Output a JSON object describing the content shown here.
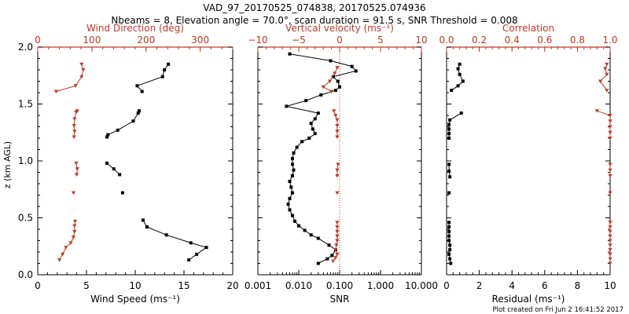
{
  "header": {
    "title": "VAD_97_20170525_074838, 20170525.074936",
    "subtitle": "Nbeams = 8, Elevation angle = 70.0°, scan duration = 91.5 s, SNR Threshold = 0.008"
  },
  "footer": {
    "created": "Plot created on Fri Jun  2 16:41:52 2017"
  },
  "colors": {
    "black": "#000000",
    "red": "#c0392b"
  },
  "chart_data": [
    {
      "type": "scatter",
      "title": "",
      "ylabel": "z (km AGL)",
      "ylim": [
        0,
        2
      ],
      "yticks": [
        0,
        0.5,
        1,
        1.5,
        2
      ],
      "ytick_labels": [
        "0.0",
        "0.5",
        "1.0",
        "1.5",
        "2.0"
      ],
      "bottom_axis": {
        "label": "Wind Speed (ms⁻¹)",
        "range": [
          0,
          20
        ],
        "ticks": [
          0,
          5,
          10,
          15,
          20
        ],
        "tick_labels": [
          "0",
          "5",
          "10",
          "15",
          "20"
        ],
        "scale": "linear"
      },
      "top_axis": {
        "label": "Wind Direction (deg)",
        "range": [
          0,
          360
        ],
        "ticks": [
          0,
          100,
          200,
          300
        ],
        "tick_labels": [
          "0",
          "100",
          "200",
          "300"
        ],
        "scale": "linear"
      },
      "series": [
        {
          "name": "Wind Speed",
          "axis": "bottom",
          "color": "#000000",
          "marker": "square",
          "segments": [
            [
              [
                15.5,
                0.13
              ],
              [
                16.3,
                0.18
              ],
              [
                17.3,
                0.24
              ],
              [
                15.7,
                0.28
              ],
              [
                13.2,
                0.35
              ],
              [
                11.2,
                0.42
              ],
              [
                10.8,
                0.48
              ]
            ],
            [
              [
                8.7,
                0.72
              ]
            ],
            [
              [
                8.4,
                0.88
              ],
              [
                7.8,
                0.93
              ],
              [
                7.1,
                0.98
              ]
            ],
            [
              [
                7.1,
                1.21
              ],
              [
                7.2,
                1.23
              ],
              [
                8.2,
                1.27
              ],
              [
                9.8,
                1.35
              ],
              [
                10.3,
                1.42
              ],
              [
                10.4,
                1.44
              ]
            ],
            [
              [
                10.7,
                1.61
              ],
              [
                10.2,
                1.66
              ],
              [
                12.8,
                1.74
              ],
              [
                13.0,
                1.8
              ],
              [
                13.4,
                1.85
              ]
            ]
          ]
        },
        {
          "name": "Wind Direction",
          "axis": "top",
          "color": "#c0392b",
          "marker": "triangle",
          "segments": [
            [
              [
                40,
                0.13
              ],
              [
                46,
                0.18
              ],
              [
                52,
                0.24
              ],
              [
                61,
                0.28
              ],
              [
                66,
                0.33
              ],
              [
                68,
                0.38
              ],
              [
                68,
                0.43
              ],
              [
                69,
                0.47
              ]
            ],
            [
              [
                66,
                0.72
              ]
            ],
            [
              [
                72,
                0.88
              ],
              [
                73,
                0.93
              ],
              [
                71,
                0.98
              ]
            ],
            [
              [
                67,
                1.21
              ],
              [
                68,
                1.26
              ],
              [
                67,
                1.31
              ],
              [
                68,
                1.37
              ],
              [
                71,
                1.43
              ],
              [
                73,
                1.44
              ]
            ],
            [
              [
                34,
                1.61
              ],
              [
                70,
                1.66
              ],
              [
                81,
                1.74
              ],
              [
                84,
                1.8
              ],
              [
                81,
                1.85
              ]
            ]
          ]
        }
      ]
    },
    {
      "type": "scatter",
      "title": "",
      "ylim": [
        0,
        2
      ],
      "bottom_axis": {
        "label": "SNR",
        "range": [
          0.001,
          10
        ],
        "ticks": [
          0.001,
          0.01,
          0.1,
          1,
          10
        ],
        "tick_labels": [
          "0.001",
          "0.010",
          "0.100",
          "1.000",
          "10.000"
        ],
        "scale": "log"
      },
      "top_axis": {
        "label": "Vertical velocity (ms⁻¹)",
        "range": [
          -10,
          10
        ],
        "ticks": [
          -10,
          -5,
          0,
          5,
          10
        ],
        "tick_labels": [
          "−10",
          "−5",
          "0",
          "5",
          "10"
        ],
        "scale": "linear"
      },
      "reference_line": {
        "axis": "top",
        "value": 0,
        "style": "dotted",
        "color": "#c0392b"
      },
      "series": [
        {
          "name": "SNR",
          "axis": "bottom",
          "color": "#000000",
          "marker": "square",
          "points": [
            [
              0.03,
              0.1
            ],
            [
              0.05,
              0.14
            ],
            [
              0.065,
              0.17
            ],
            [
              0.08,
              0.22
            ],
            [
              0.055,
              0.26
            ],
            [
              0.03,
              0.32
            ],
            [
              0.02,
              0.35
            ],
            [
              0.014,
              0.39
            ],
            [
              0.01,
              0.43
            ],
            [
              0.008,
              0.47
            ],
            [
              0.007,
              0.52
            ],
            [
              0.006,
              0.57
            ],
            [
              0.0055,
              0.62
            ],
            [
              0.006,
              0.67
            ],
            [
              0.007,
              0.72
            ],
            [
              0.0065,
              0.77
            ],
            [
              0.006,
              0.82
            ],
            [
              0.007,
              0.87
            ],
            [
              0.0075,
              0.92
            ],
            [
              0.007,
              0.97
            ],
            [
              0.007,
              1.02
            ],
            [
              0.0075,
              1.07
            ],
            [
              0.009,
              1.12
            ],
            [
              0.012,
              1.17
            ],
            [
              0.018,
              1.2
            ],
            [
              0.025,
              1.24
            ],
            [
              0.022,
              1.28
            ],
            [
              0.02,
              1.33
            ],
            [
              0.025,
              1.37
            ],
            [
              0.03,
              1.42
            ],
            [
              0.005,
              1.48
            ],
            [
              0.015,
              1.53
            ],
            [
              0.035,
              1.58
            ],
            [
              0.08,
              1.62
            ],
            [
              0.1,
              1.65
            ],
            [
              0.09,
              1.7
            ],
            [
              0.07,
              1.74
            ],
            [
              0.25,
              1.79
            ],
            [
              0.2,
              1.83
            ],
            [
              0.06,
              1.88
            ],
            [
              0.006,
              1.94
            ]
          ]
        },
        {
          "name": "Vertical velocity",
          "axis": "top",
          "color": "#c0392b",
          "marker": "triangle",
          "segments": [
            [
              [
                -0.8,
                0.12
              ],
              [
                -0.5,
                0.15
              ],
              [
                -0.3,
                0.18
              ],
              [
                -0.5,
                0.22
              ],
              [
                -0.4,
                0.26
              ],
              [
                -0.3,
                0.3
              ],
              [
                -0.3,
                0.34
              ],
              [
                -0.3,
                0.38
              ],
              [
                -0.3,
                0.42
              ],
              [
                -0.3,
                0.46
              ]
            ],
            [
              [
                -0.3,
                0.72
              ]
            ],
            [
              [
                -0.3,
                0.87
              ],
              [
                -0.3,
                0.92
              ],
              [
                -0.2,
                0.97
              ]
            ],
            [
              [
                -0.3,
                1.21
              ],
              [
                -0.3,
                1.26
              ],
              [
                -0.3,
                1.31
              ],
              [
                -0.3,
                1.36
              ],
              [
                -0.5,
                1.4
              ],
              [
                -0.7,
                1.44
              ]
            ],
            [
              [
                -1.0,
                1.61
              ],
              [
                -2.0,
                1.65
              ],
              [
                -1.2,
                1.7
              ],
              [
                -0.6,
                1.77
              ],
              [
                -0.3,
                1.82
              ]
            ]
          ]
        }
      ]
    },
    {
      "type": "scatter",
      "title": "",
      "ylim": [
        0,
        2
      ],
      "bottom_axis": {
        "label": "Residual (ms⁻¹)",
        "range": [
          0,
          10
        ],
        "ticks": [
          0,
          2,
          4,
          6,
          8,
          10
        ],
        "tick_labels": [
          "0",
          "2",
          "4",
          "6",
          "8",
          "10"
        ],
        "scale": "linear"
      },
      "top_axis": {
        "label": "Correlation",
        "range": [
          0,
          1
        ],
        "ticks": [
          0,
          0.2,
          0.4,
          0.6,
          0.8,
          1
        ],
        "tick_labels": [
          "0.0",
          "0.2",
          "0.4",
          "0.6",
          "0.8",
          "1.0"
        ],
        "scale": "linear"
      },
      "series": [
        {
          "name": "Residual",
          "axis": "bottom",
          "color": "#000000",
          "marker": "square",
          "segments": [
            [
              [
                0.25,
                0.1
              ],
              [
                0.2,
                0.14
              ],
              [
                0.15,
                0.18
              ],
              [
                0.2,
                0.22
              ],
              [
                0.2,
                0.26
              ],
              [
                0.15,
                0.3
              ],
              [
                0.15,
                0.34
              ],
              [
                0.15,
                0.38
              ],
              [
                0.15,
                0.42
              ],
              [
                0.15,
                0.46
              ]
            ],
            [
              [
                0.15,
                0.72
              ]
            ],
            [
              [
                0.2,
                0.86
              ],
              [
                0.15,
                0.91
              ],
              [
                0.15,
                0.97
              ]
            ],
            [
              [
                0.15,
                1.2
              ],
              [
                0.15,
                1.24
              ],
              [
                0.15,
                1.28
              ],
              [
                0.15,
                1.32
              ],
              [
                0.2,
                1.36
              ],
              [
                0.9,
                1.42
              ]
            ],
            [
              [
                0.3,
                1.62
              ],
              [
                0.7,
                1.66
              ],
              [
                1.0,
                1.7
              ],
              [
                0.8,
                1.76
              ],
              [
                0.7,
                1.81
              ],
              [
                0.8,
                1.85
              ]
            ]
          ]
        },
        {
          "name": "Correlation",
          "axis": "top",
          "color": "#c0392b",
          "marker": "triangle",
          "segments": [
            [
              [
                1.0,
                0.1
              ],
              [
                1.0,
                0.14
              ],
              [
                1.0,
                0.18
              ],
              [
                1.0,
                0.22
              ],
              [
                1.0,
                0.26
              ],
              [
                1.0,
                0.3
              ],
              [
                1.0,
                0.34
              ],
              [
                1.0,
                0.38
              ],
              [
                1.0,
                0.42
              ],
              [
                1.0,
                0.46
              ]
            ],
            [
              [
                1.0,
                0.72
              ]
            ],
            [
              [
                1.0,
                0.87
              ],
              [
                1.0,
                0.92
              ],
              [
                1.0,
                0.97
              ]
            ],
            [
              [
                1.0,
                1.2
              ],
              [
                1.0,
                1.25
              ],
              [
                1.0,
                1.3
              ],
              [
                1.0,
                1.35
              ],
              [
                1.0,
                1.4
              ],
              [
                0.92,
                1.44
              ]
            ],
            [
              [
                0.98,
                1.62
              ],
              [
                0.94,
                1.7
              ],
              [
                0.98,
                1.76
              ],
              [
                0.97,
                1.81
              ],
              [
                0.98,
                1.85
              ]
            ]
          ]
        }
      ]
    }
  ]
}
